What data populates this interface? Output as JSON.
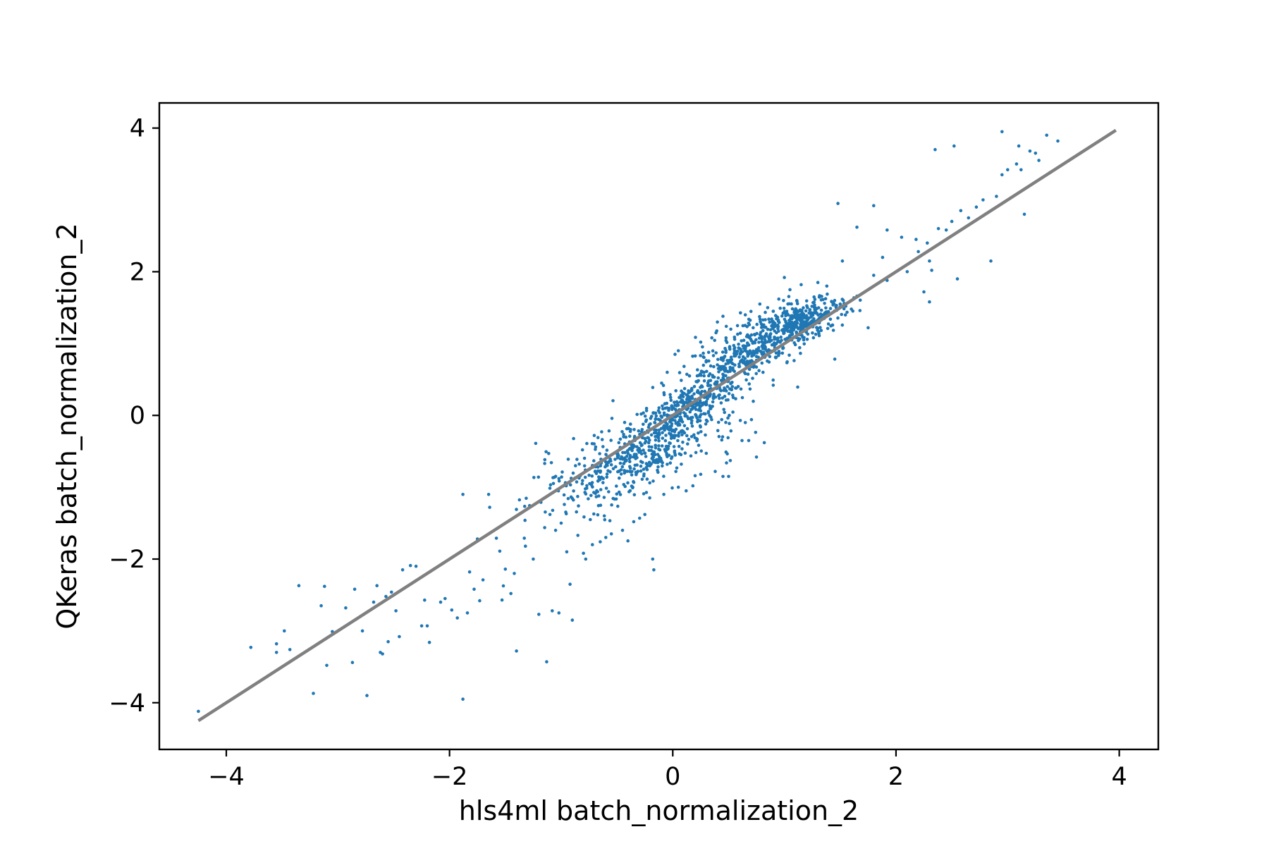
{
  "chart_data": {
    "type": "scatter",
    "xlabel": "hls4ml batch_normalization_2",
    "ylabel": "QKeras batch_normalization_2",
    "xlim": [
      -4.6,
      4.35
    ],
    "ylim": [
      -4.65,
      4.35
    ],
    "x_ticks": [
      -4,
      -2,
      0,
      2,
      4
    ],
    "y_ticks": [
      -4,
      -2,
      0,
      2,
      4
    ],
    "x_tick_labels": [
      "−4",
      "−2",
      "0",
      "2",
      "4"
    ],
    "y_tick_labels": [
      "−4",
      "−2",
      "0",
      "2",
      "4"
    ],
    "grid": false,
    "legend": "none",
    "colors": {
      "points": "#1f77b4",
      "reference_line": "#808080",
      "axes": "#000000"
    },
    "reference_line": {
      "x": [
        -4.25,
        3.97
      ],
      "y": [
        -4.25,
        3.97
      ]
    },
    "series": [
      {
        "points": [
          [
            -4.25,
            -4.12
          ],
          [
            -3.78,
            -3.23
          ],
          [
            -3.55,
            -3.18
          ],
          [
            -3.48,
            -3.0
          ],
          [
            -3.43,
            -3.26
          ],
          [
            -3.35,
            -2.37
          ],
          [
            -3.22,
            -3.87
          ],
          [
            -3.15,
            -2.65
          ],
          [
            -3.12,
            -2.38
          ],
          [
            -3.1,
            -3.48
          ],
          [
            -3.05,
            -3.01
          ],
          [
            -2.93,
            -2.68
          ],
          [
            -2.87,
            -3.44
          ],
          [
            -2.85,
            -2.42
          ],
          [
            -2.78,
            -3.0
          ],
          [
            -2.74,
            -3.9
          ],
          [
            -2.68,
            -2.6
          ],
          [
            -2.65,
            -2.37
          ],
          [
            -2.62,
            -3.3
          ],
          [
            -2.6,
            -3.32
          ],
          [
            -2.57,
            -2.52
          ],
          [
            -2.55,
            -3.15
          ],
          [
            -2.52,
            -2.46
          ],
          [
            -2.48,
            -2.72
          ],
          [
            -2.45,
            -3.08
          ],
          [
            -2.42,
            -2.15
          ],
          [
            -2.35,
            -2.09
          ],
          [
            -2.3,
            -2.1
          ],
          [
            -2.25,
            -2.93
          ],
          [
            -2.2,
            -2.93
          ],
          [
            -2.18,
            -3.16
          ],
          [
            -2.08,
            -2.6
          ],
          [
            -2.04,
            -2.55
          ],
          [
            -1.98,
            -2.71
          ],
          [
            -1.93,
            -2.82
          ],
          [
            -1.88,
            -3.95
          ],
          [
            -1.84,
            -2.75
          ],
          [
            -1.82,
            -2.18
          ],
          [
            -1.78,
            -2.42
          ],
          [
            -1.75,
            -1.72
          ],
          [
            -1.73,
            -2.58
          ],
          [
            -1.7,
            -2.29
          ],
          [
            -1.65,
            -1.1
          ],
          [
            -1.64,
            -1.28
          ],
          [
            -1.58,
            -1.71
          ],
          [
            -1.55,
            -1.89
          ],
          [
            -1.53,
            -2.57
          ],
          [
            -1.5,
            -2.14
          ],
          [
            -1.45,
            -2.48
          ],
          [
            -1.42,
            -2.2
          ],
          [
            -1.4,
            -3.28
          ],
          [
            -1.33,
            -1.71
          ],
          [
            -1.32,
            -1.82
          ],
          [
            -1.25,
            -2.0
          ],
          [
            -1.2,
            -2.77
          ],
          [
            -1.13,
            -3.43
          ],
          [
            -1.1,
            -1.38
          ],
          [
            -1.08,
            -2.72
          ],
          [
            -1.05,
            -1.6
          ],
          [
            -1.02,
            -2.75
          ],
          [
            -1.0,
            -1.5
          ],
          [
            -0.95,
            -1.9
          ],
          [
            -0.92,
            -2.35
          ],
          [
            -0.9,
            -2.85
          ],
          [
            -0.85,
            -1.67
          ],
          [
            -0.8,
            -1.92
          ],
          [
            -0.78,
            -2.0
          ],
          [
            -0.72,
            -1.8
          ],
          [
            -0.65,
            -1.76
          ],
          [
            -0.6,
            -1.7
          ],
          [
            -0.55,
            -1.65
          ],
          [
            -0.45,
            -1.6
          ],
          [
            -0.35,
            -1.48
          ],
          [
            -0.25,
            -1.38
          ],
          [
            -0.18,
            -2.0
          ],
          [
            -0.17,
            -2.15
          ],
          [
            -3.55,
            -3.3
          ],
          [
            -1.88,
            -1.1
          ],
          [
            -1.02,
            -0.88
          ],
          [
            -0.08,
            -1.1
          ],
          [
            -0.05,
            -0.68
          ],
          [
            0.05,
            -1.0
          ],
          [
            0.12,
            -1.05
          ],
          [
            0.18,
            -0.98
          ],
          [
            0.25,
            -0.82
          ],
          [
            0.38,
            -0.78
          ],
          [
            0.45,
            -0.85
          ],
          [
            0.5,
            -0.85
          ],
          [
            0.62,
            -0.35
          ],
          [
            0.65,
            -0.1
          ],
          [
            0.68,
            -0.35
          ],
          [
            0.75,
            -0.58
          ],
          [
            0.82,
            -0.38
          ],
          [
            -0.1,
            0.45
          ],
          [
            -0.05,
            0.6
          ],
          [
            0.02,
            0.85
          ],
          [
            0.05,
            0.9
          ],
          [
            0.15,
            0.55
          ],
          [
            0.25,
            1.02
          ],
          [
            0.3,
            0.75
          ],
          [
            0.35,
            1.08
          ],
          [
            0.4,
            1.3
          ],
          [
            0.45,
            1.38
          ],
          [
            0.52,
            1.2
          ],
          [
            0.58,
            1.25
          ],
          [
            0.65,
            1.4
          ],
          [
            0.68,
            0.72
          ],
          [
            0.72,
            1.22
          ],
          [
            0.78,
            1.55
          ],
          [
            0.85,
            1.5
          ],
          [
            0.9,
            1.45
          ],
          [
            0.95,
            1.62
          ],
          [
            1.0,
            1.92
          ],
          [
            1.05,
            1.75
          ],
          [
            1.15,
            1.82
          ],
          [
            1.3,
            1.85
          ],
          [
            1.38,
            1.8
          ],
          [
            1.45,
            1.6
          ],
          [
            1.5,
            1.55
          ],
          [
            1.55,
            1.52
          ],
          [
            1.6,
            1.48
          ],
          [
            1.65,
            1.66
          ],
          [
            1.75,
            1.22
          ],
          [
            1.8,
            1.95
          ],
          [
            1.92,
            1.88
          ],
          [
            2.1,
            2.0
          ],
          [
            2.2,
            2.28
          ],
          [
            2.25,
            1.72
          ],
          [
            2.28,
            2.4
          ],
          [
            2.32,
            2.02
          ],
          [
            2.38,
            2.6
          ],
          [
            2.45,
            2.58
          ],
          [
            2.5,
            2.7
          ],
          [
            2.58,
            2.85
          ],
          [
            2.65,
            2.75
          ],
          [
            2.72,
            2.9
          ],
          [
            2.78,
            3.0
          ],
          [
            2.85,
            2.15
          ],
          [
            2.9,
            3.05
          ],
          [
            2.95,
            3.35
          ],
          [
            3.0,
            3.42
          ],
          [
            3.08,
            3.5
          ],
          [
            3.15,
            2.8
          ],
          [
            3.2,
            3.68
          ],
          [
            3.28,
            3.55
          ],
          [
            3.35,
            3.9
          ],
          [
            3.45,
            3.82
          ],
          [
            3.12,
            3.42
          ],
          [
            2.35,
            3.7
          ],
          [
            2.52,
            3.75
          ],
          [
            2.95,
            3.95
          ],
          [
            3.1,
            3.75
          ],
          [
            3.25,
            3.65
          ],
          [
            3.38,
            3.38
          ],
          [
            1.48,
            2.95
          ],
          [
            1.65,
            2.62
          ],
          [
            1.8,
            2.92
          ],
          [
            1.92,
            2.58
          ],
          [
            2.05,
            2.48
          ],
          [
            2.18,
            2.45
          ],
          [
            2.3,
            2.15
          ],
          [
            1.52,
            2.15
          ],
          [
            1.88,
            2.2
          ],
          [
            2.3,
            1.58
          ],
          [
            2.55,
            1.9
          ],
          [
            0.9,
            0.42
          ]
        ]
      }
    ]
  }
}
